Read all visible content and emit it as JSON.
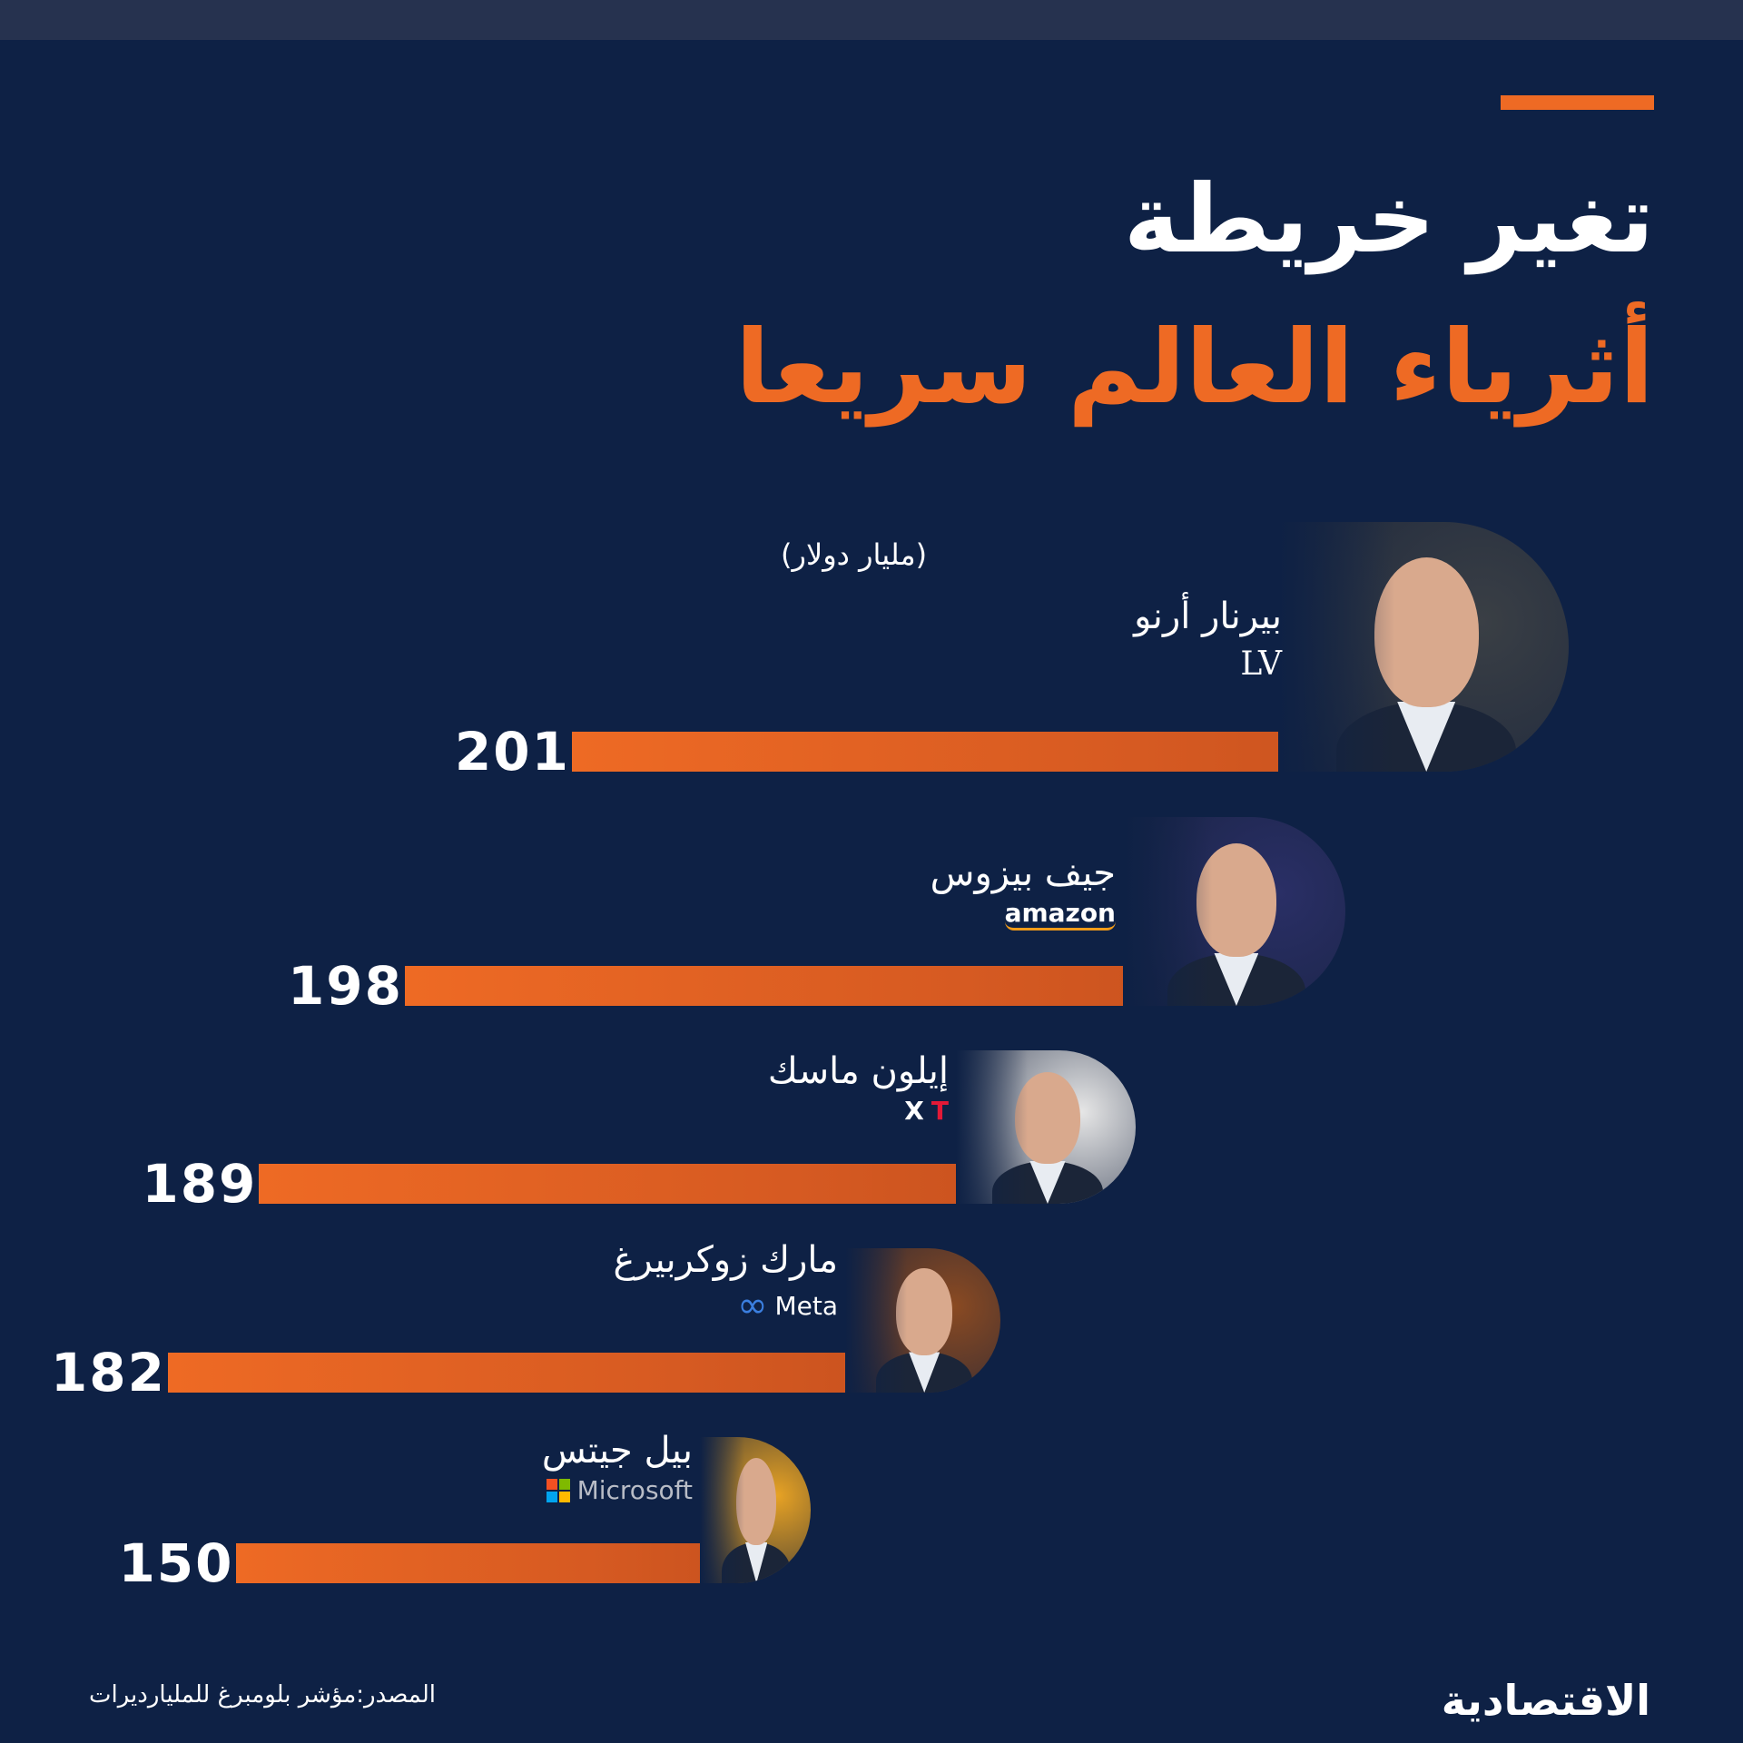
{
  "header": {
    "title_line1": "تغير خريطة",
    "title_line2": "أثرياء العالم سريعا",
    "unit": "(مليار دولار)"
  },
  "chart_data": {
    "type": "bar",
    "orientation": "horizontal",
    "title": "تغير خريطة أثرياء العالم سريعا",
    "unit": "(مليار دولار)",
    "categories": [
      "بيرنار أرنو",
      "جيف بيزوس",
      "إيلون ماسك",
      "مارك زوكربيرغ",
      "بيل جيتس"
    ],
    "values": [
      201,
      198,
      189,
      182,
      150
    ],
    "value_labels": [
      "201",
      "198",
      "189",
      "182",
      "150"
    ],
    "companies": [
      "LV",
      "amazon",
      "Tesla / X",
      "Meta",
      "Microsoft"
    ],
    "grid": false,
    "legend": "none"
  },
  "rows": [
    {
      "name": "بيرنار أرنو",
      "brand": "LV",
      "value": "201"
    },
    {
      "name": "جيف بيزوس",
      "brand": "amazon",
      "value": "198"
    },
    {
      "name": "إيلون ماسك",
      "brand": "X",
      "brand2": "T",
      "value": "189"
    },
    {
      "name": "مارك زوكربيرغ",
      "brand": "Meta",
      "value": "182"
    },
    {
      "name": "بيل جيتس",
      "brand": "Microsoft",
      "value": "150"
    }
  ],
  "footer": {
    "source": "المصدر:مؤشر بلومبرغ للمليارديرات",
    "logo": "الاقتصادية"
  },
  "colors": {
    "background": "#0e2145",
    "accent": "#ee6a24",
    "text": "#ffffff"
  }
}
